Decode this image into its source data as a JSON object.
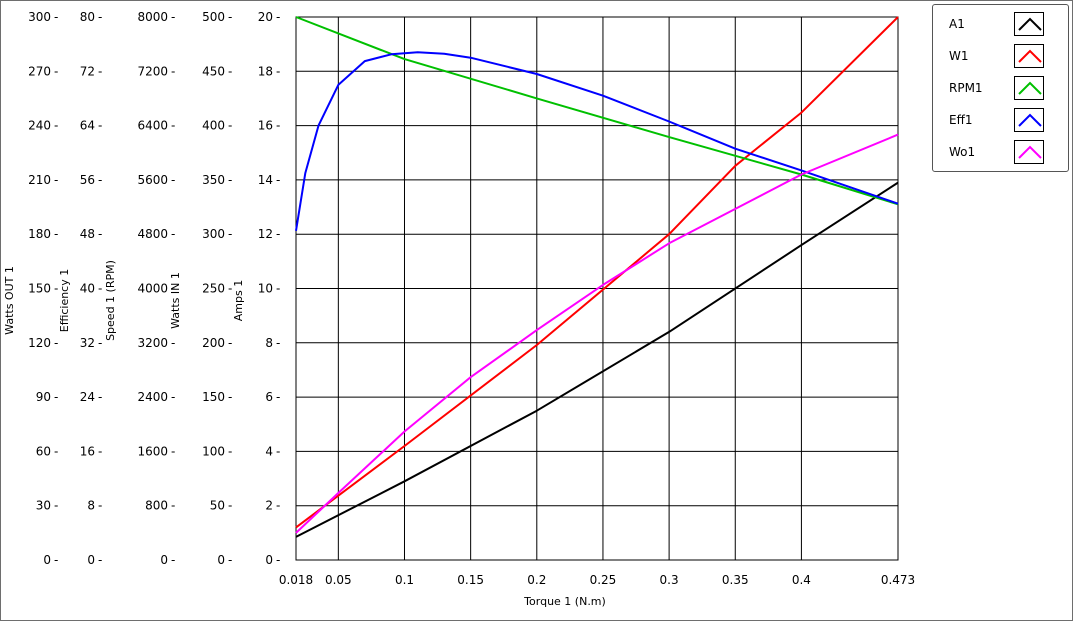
{
  "chart_data": {
    "type": "line",
    "xlabel": "Torque 1 (N.m)",
    "xlim": [
      0.018,
      0.473
    ],
    "x_ticks": [
      0.018,
      0.05,
      0.1,
      0.15,
      0.2,
      0.25,
      0.3,
      0.35,
      0.4,
      0.473
    ],
    "x_tick_labels": [
      "0.018",
      "0.05",
      "0.1",
      "0.15",
      "0.2",
      "0.25",
      "0.3",
      "0.35",
      "0.4",
      "0.473"
    ],
    "grid": true,
    "legend_position": "top-right",
    "y_axes": [
      {
        "id": "watts_out",
        "label": "Watts OUT 1",
        "ylim": [
          0,
          300
        ],
        "tick_labels": [
          "0",
          "30",
          "60",
          "90",
          "120",
          "150",
          "180",
          "210",
          "240",
          "270",
          "300"
        ]
      },
      {
        "id": "efficiency",
        "label": "Efficiency 1",
        "ylim": [
          0,
          80
        ],
        "tick_labels": [
          "0",
          "8",
          "16",
          "24",
          "32",
          "40",
          "48",
          "56",
          "64",
          "72",
          "80"
        ]
      },
      {
        "id": "speed",
        "label": "Speed 1 (RPM)",
        "ylim": [
          0,
          8000
        ],
        "tick_labels": [
          "0",
          "800",
          "1600",
          "2400",
          "3200",
          "4000",
          "4800",
          "5600",
          "6400",
          "7200",
          "8000"
        ]
      },
      {
        "id": "watts_in",
        "label": "Watts IN 1",
        "ylim": [
          0,
          500
        ],
        "tick_labels": [
          "0",
          "50",
          "100",
          "150",
          "200",
          "250",
          "300",
          "350",
          "400",
          "450",
          "500"
        ]
      },
      {
        "id": "amps",
        "label": "Amps 1",
        "ylim": [
          0,
          20
        ],
        "tick_labels": [
          "0",
          "2",
          "4",
          "6",
          "8",
          "10",
          "12",
          "14",
          "16",
          "18",
          "20"
        ]
      }
    ],
    "series": [
      {
        "name": "A1",
        "color": "#000000",
        "axis": "amps",
        "x": [
          0.018,
          0.1,
          0.2,
          0.3,
          0.4,
          0.473
        ],
        "y": [
          0.85,
          2.9,
          5.5,
          8.4,
          11.6,
          13.9
        ]
      },
      {
        "name": "W1",
        "color": "#ff0000",
        "axis": "watts_in",
        "x": [
          0.018,
          0.1,
          0.2,
          0.3,
          0.35,
          0.4,
          0.473
        ],
        "y": [
          30,
          105,
          198,
          300,
          363,
          412,
          500
        ]
      },
      {
        "name": "RPM1",
        "color": "#00c000",
        "axis": "speed",
        "x": [
          0.018,
          0.1,
          0.2,
          0.3,
          0.4,
          0.473
        ],
        "y": [
          8000,
          7380,
          6800,
          6230,
          5680,
          5240
        ]
      },
      {
        "name": "Eff1",
        "color": "#0000ff",
        "axis": "efficiency",
        "x": [
          0.018,
          0.025,
          0.035,
          0.05,
          0.07,
          0.09,
          0.11,
          0.13,
          0.15,
          0.2,
          0.25,
          0.3,
          0.35,
          0.4,
          0.473
        ],
        "y": [
          48.5,
          57,
          64,
          70,
          73.5,
          74.5,
          74.8,
          74.6,
          74,
          71.6,
          68.4,
          64.6,
          60.6,
          57.4,
          52.5
        ]
      },
      {
        "name": "Wo1",
        "color": "#ff00ff",
        "axis": "watts_out",
        "x": [
          0.018,
          0.05,
          0.1,
          0.15,
          0.2,
          0.25,
          0.3,
          0.35,
          0.4,
          0.473
        ],
        "y": [
          15,
          37,
          71,
          101,
          127,
          152,
          175,
          194,
          213,
          235
        ]
      }
    ]
  }
}
